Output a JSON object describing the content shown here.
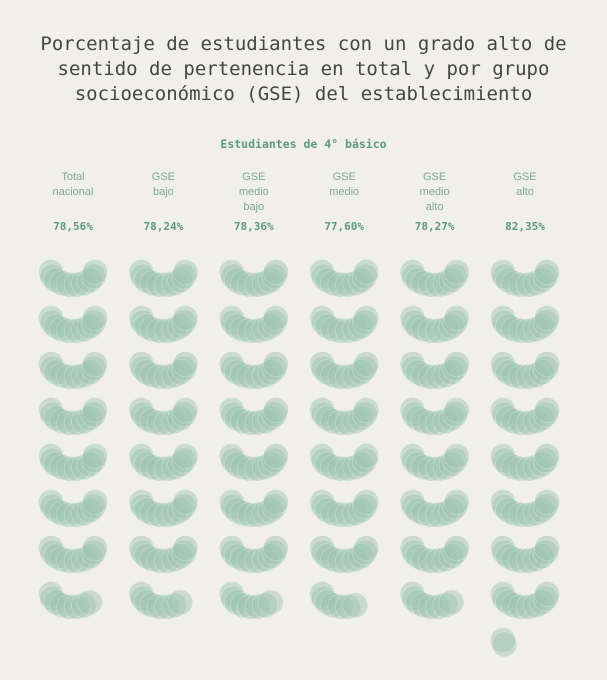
{
  "chart_data": {
    "type": "unit",
    "title": "Porcentaje de estudiantes con un grado alto de sentido de pertenencia en total y por grupo socioeconómico (GSE) del establecimiento",
    "subtitle": "Estudiantes de 4° básico",
    "categories": [
      "Total\nnacional",
      "GSE\nbajo",
      "GSE\nmedio\nbajo",
      "GSE\nmedio",
      "GSE\nmedio\nalto",
      "GSE\nalto"
    ],
    "values": [
      78.56,
      78.24,
      78.36,
      77.6,
      78.27,
      82.35
    ],
    "value_labels": [
      "78,56%",
      "78,24%",
      "78,36%",
      "77,60%",
      "78,27%",
      "82,35%"
    ],
    "color": "#9cc4ac"
  }
}
